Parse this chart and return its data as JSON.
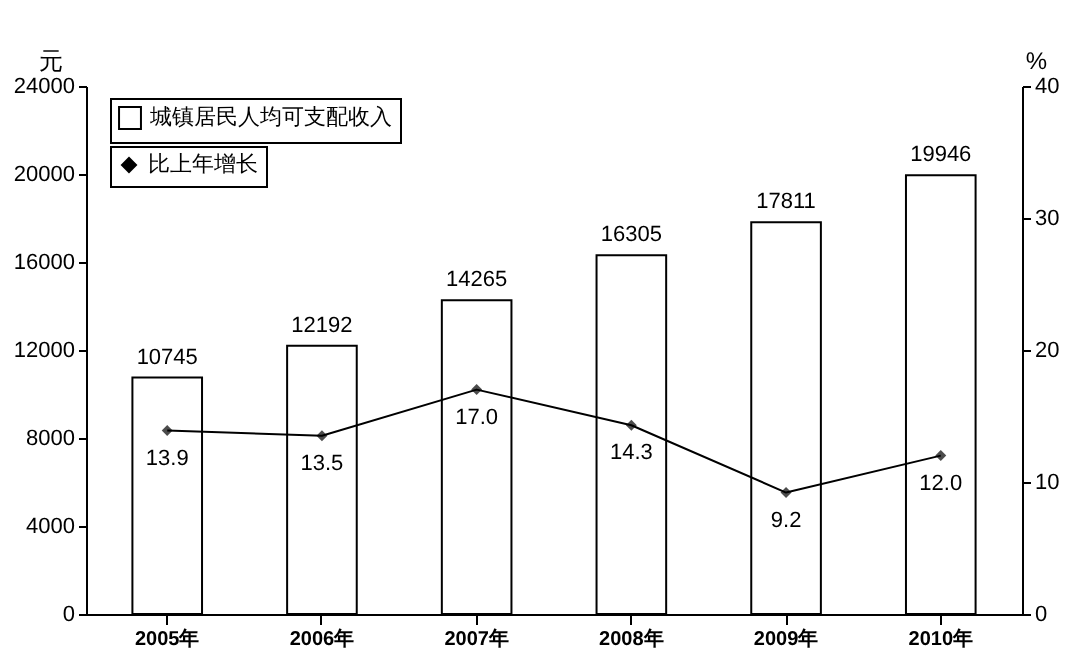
{
  "chart_data": {
    "type": "bar",
    "ylabel": "元",
    "y2label": "%",
    "categories": [
      "2005年",
      "2006年",
      "2007年",
      "2008年",
      "2009年",
      "2010年"
    ],
    "series": [
      {
        "name": "城镇居民人均可支配收入",
        "color": "#ffffff",
        "values": [
          10745,
          12192,
          14265,
          16305,
          17811,
          19946
        ],
        "value_labels": [
          "10745",
          "12192",
          "14265",
          "16305",
          "17811",
          "19946"
        ]
      },
      {
        "name": "比上年增长",
        "type": "line",
        "axis": "y2",
        "color": "#000000",
        "values": [
          13.9,
          13.5,
          17.0,
          14.3,
          9.2,
          12.0
        ],
        "value_labels": [
          "13.9",
          "13.5",
          "17.0",
          "14.3",
          "9.2",
          "12.0"
        ]
      }
    ],
    "ylim": [
      0,
      24000
    ],
    "yticks": [
      0,
      4000,
      8000,
      12000,
      16000,
      20000,
      24000
    ],
    "y2lim": [
      0,
      40
    ],
    "y2ticks": [
      0,
      10,
      20,
      30,
      40
    ],
    "grid": false,
    "legend": "top left",
    "marker": "diamond",
    "line_style": "solid"
  }
}
